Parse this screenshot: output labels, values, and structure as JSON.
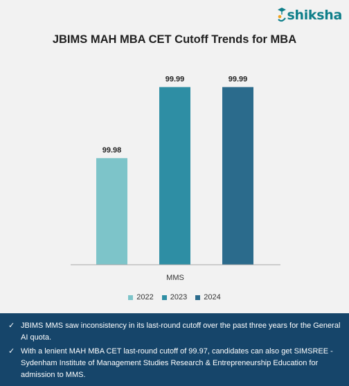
{
  "logo": {
    "text": "shiksha",
    "icon": "graduate-cap-icon"
  },
  "colors": {
    "s2022": "#7dc4c9",
    "s2023": "#2e8ea4",
    "s2024": "#2b6b8c",
    "notes_bg": "#16456a"
  },
  "chart_data": {
    "type": "bar",
    "title": "JBIMS MAH MBA CET Cutoff Trends for MBA",
    "categories": [
      "MMS"
    ],
    "series": [
      {
        "name": "2022",
        "values": [
          99.98
        ],
        "color": "#7dc4c9"
      },
      {
        "name": "2023",
        "values": [
          99.99
        ],
        "color": "#2e8ea4"
      },
      {
        "name": "2024",
        "values": [
          99.99
        ],
        "color": "#2b6b8c"
      }
    ],
    "data_labels": [
      "99.98",
      "99.99",
      "99.99"
    ],
    "ylim": [
      99.965,
      99.9925
    ],
    "grid": false,
    "legend": "bottom"
  },
  "notes": [
    "JBIMS MMS saw inconsistency in its last-round cutoff over the past three years for the General AI quota.",
    "With a lenient MAH MBA CET last-round cutoff of 99.97, candidates can also get SIMSREE - Sydenham Institute of Management Studies Research & Entrepreneurship Education for admission to MMS."
  ],
  "check_glyph": "✓"
}
